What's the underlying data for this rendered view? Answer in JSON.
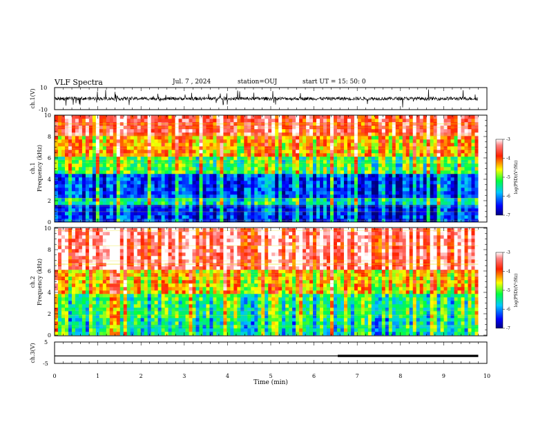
{
  "header": {
    "title": "VLF Spectra",
    "date": "Jul. 7 , 2024",
    "station": "station=OUJ",
    "start": "start UT =  15: 50: 0"
  },
  "chart_data": [
    {
      "type": "line",
      "name": "ch.1 waveform",
      "ylabel": "ch.1(V)",
      "ylim": [
        -10,
        10
      ],
      "yticks": [
        "10",
        "-10"
      ],
      "xlim": [
        0,
        10
      ],
      "baseline": 0,
      "data_end": 9.8
    },
    {
      "type": "heatmap",
      "ylabel": "ch.1\nFrequency (kHz)",
      "ylabel_line1": "ch.1",
      "ylabel_line2": "Frequency (kHz)",
      "ylim": [
        0,
        10
      ],
      "yticks": [
        "0",
        "2",
        "4",
        "6",
        "8",
        "10"
      ],
      "xlim": [
        0,
        10
      ],
      "data_end": 9.8,
      "colorbar": {
        "label": "log(PSD)(V²/Hz)",
        "range": [
          -7,
          -3
        ],
        "ticks": [
          "-3",
          "-4",
          "-5",
          "-6",
          "-7"
        ]
      },
      "description_levels": {
        "0-1.5": -6.5,
        "1.5-2.2": -5.6,
        "2.2-4.5": -6.4,
        "4.5-6": -5.2,
        "6-8": -4.4,
        "8-10": -3.7
      }
    },
    {
      "type": "heatmap",
      "ylabel": "ch.2\nFrequency (kHz)",
      "ylabel_line1": "ch.2",
      "ylabel_line2": "Frequency (kHz)",
      "ylim": [
        0,
        10
      ],
      "yticks": [
        "0",
        "2",
        "4",
        "6",
        "8",
        "10"
      ],
      "xlim": [
        0,
        10
      ],
      "data_end": 9.8,
      "colorbar": {
        "label": "log(PSD)(V²/Hz)",
        "range": [
          -7,
          -3
        ],
        "ticks": [
          "-3",
          "-4",
          "-5",
          "-6",
          "-7"
        ]
      },
      "description_levels": {
        "0-1.5": -5.6,
        "1.5-4": -5.4,
        "4-6": -4.6,
        "6-10": -3.5
      }
    },
    {
      "type": "line",
      "name": "ch.3",
      "ylabel": "ch.3(V)",
      "ylim": [
        -5,
        5
      ],
      "yticks": [
        "5",
        "-5"
      ],
      "xlim": [
        0,
        10
      ],
      "xlabel": "Time (min)",
      "xticks": [
        "0",
        "1",
        "2",
        "3",
        "4",
        "5",
        "6",
        "7",
        "8",
        "9",
        "10"
      ],
      "level": -1.5,
      "data_end": 9.8,
      "thick_from": 6.55
    }
  ],
  "colors": {
    "axis": "#000000",
    "trace": "#000000"
  }
}
